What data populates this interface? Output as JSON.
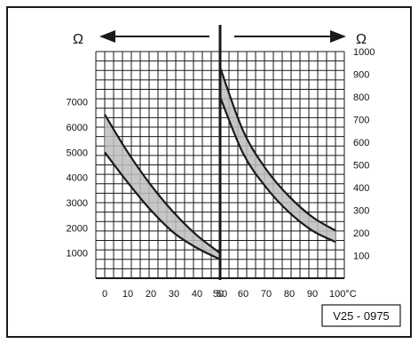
{
  "colors": {
    "ink": "#1a1a1a",
    "band_fill": "#bdbdbd",
    "background": "#ffffff"
  },
  "chart_data": {
    "type": "area",
    "grid": true,
    "title": "",
    "code": "V25 - 0975",
    "x_ticks": [
      "0",
      "10",
      "20",
      "30",
      "40",
      "50",
      "50",
      "60",
      "70",
      "80",
      "90",
      "100°C"
    ],
    "left": {
      "unit": "Ω",
      "direction": "left",
      "xlim": [
        0,
        50
      ],
      "ylim": [
        0,
        9000
      ],
      "yticks": [
        "1000",
        "2000",
        "3000",
        "4000",
        "5000",
        "6000",
        "7000"
      ],
      "upper": [
        [
          0,
          6500
        ],
        [
          10,
          5000
        ],
        [
          20,
          3700
        ],
        [
          30,
          2600
        ],
        [
          40,
          1700
        ],
        [
          50,
          1000
        ]
      ],
      "lower": [
        [
          0,
          5000
        ],
        [
          10,
          3800
        ],
        [
          20,
          2700
        ],
        [
          30,
          1800
        ],
        [
          40,
          1200
        ],
        [
          50,
          750
        ]
      ]
    },
    "right": {
      "unit": "Ω",
      "direction": "right",
      "xlim": [
        50,
        100
      ],
      "ylim": [
        0,
        1000
      ],
      "yticks": [
        "100",
        "200",
        "300",
        "400",
        "500",
        "600",
        "700",
        "800",
        "900",
        "1000"
      ],
      "upper": [
        [
          50,
          930
        ],
        [
          60,
          650
        ],
        [
          70,
          480
        ],
        [
          80,
          360
        ],
        [
          90,
          270
        ],
        [
          100,
          210
        ]
      ],
      "lower": [
        [
          50,
          800
        ],
        [
          60,
          550
        ],
        [
          70,
          400
        ],
        [
          80,
          290
        ],
        [
          90,
          210
        ],
        [
          100,
          160
        ]
      ]
    }
  }
}
